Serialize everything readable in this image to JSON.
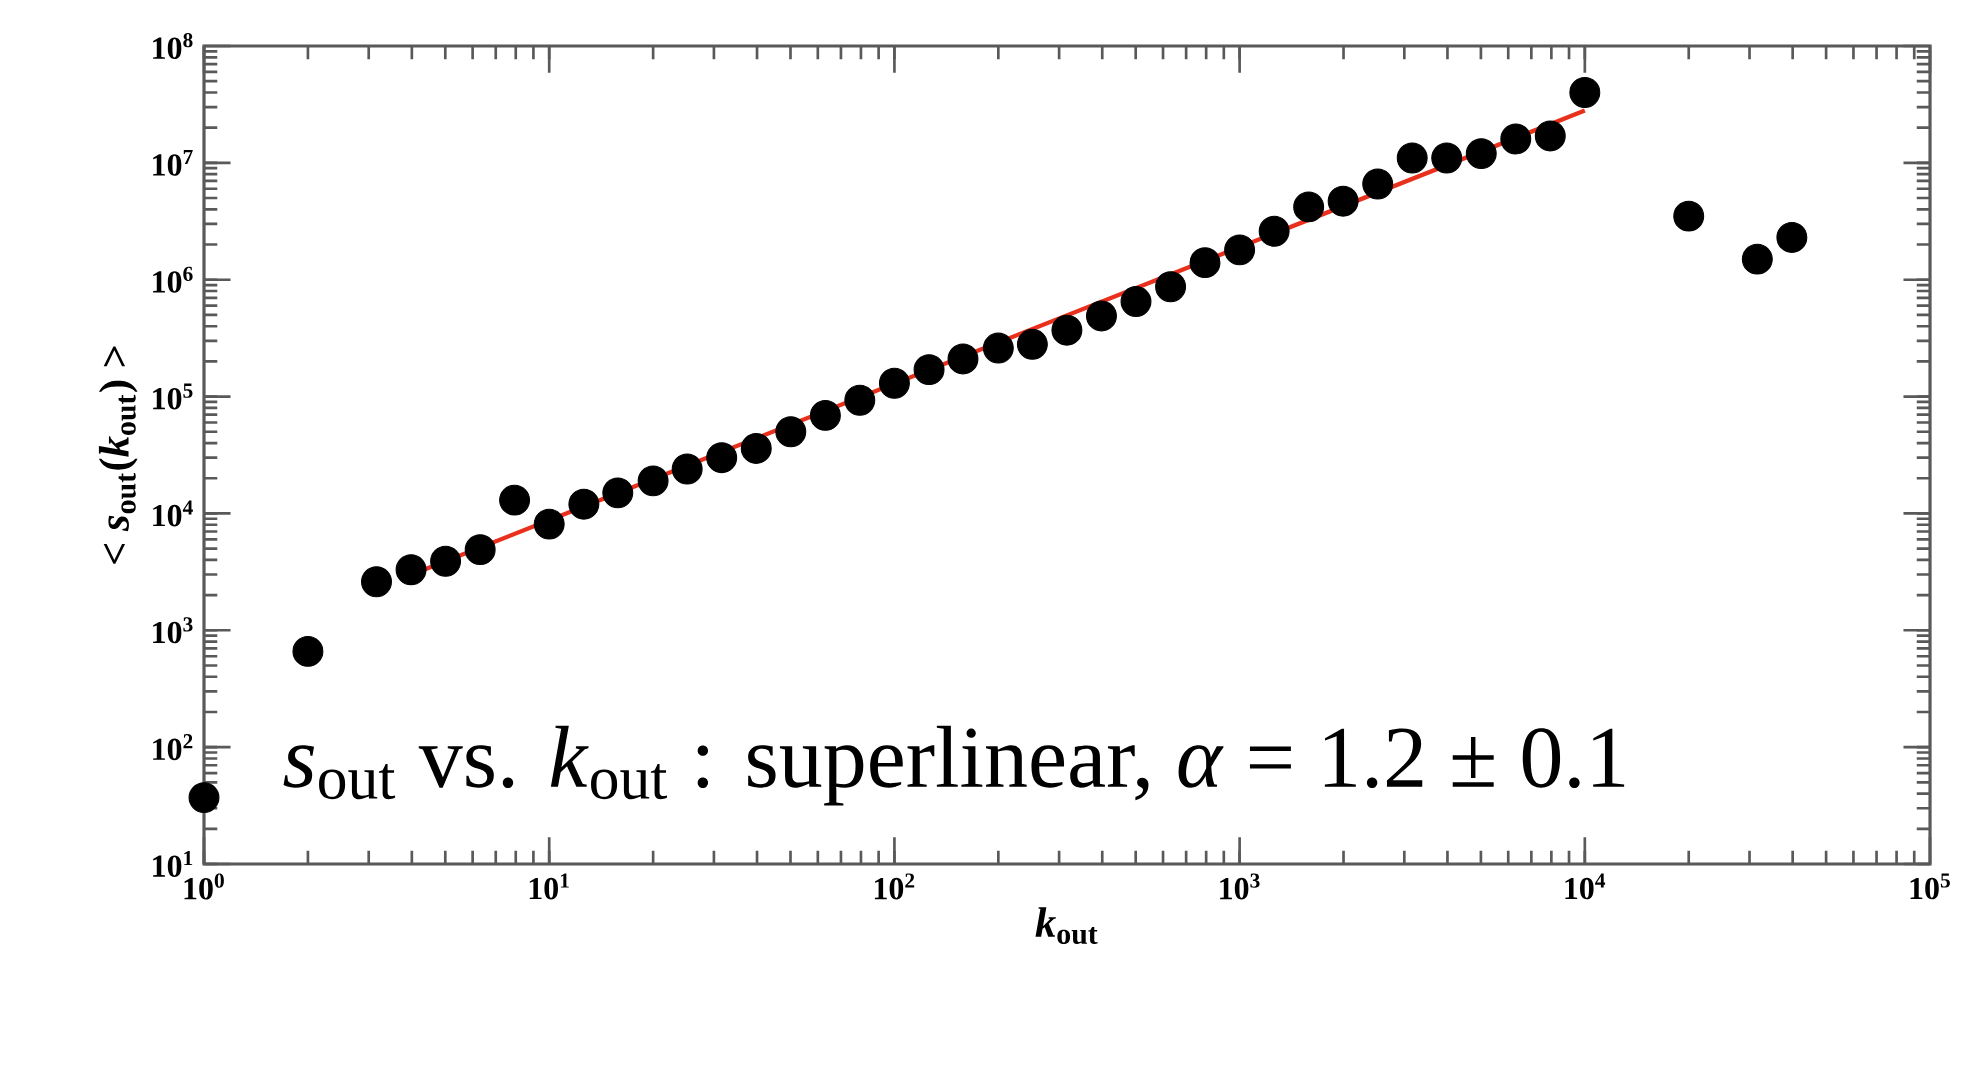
{
  "chart_data": {
    "type": "scatter",
    "xlabel": "*k*$_{out}$",
    "ylabel": "< *s*$_{out}$(*k*$_{out}$) >",
    "annotations": [
      "*s*$_{out}$ vs. *k*$_{out}$ :  superlinear, *α* = 1.2 ± 0.1"
    ],
    "log": "xy",
    "marker": "circle",
    "xlim": [
      1,
      100000
    ],
    "ylim": [
      10,
      100000000
    ],
    "xticks": [
      {
        "value": 1,
        "label": "10$^{0}$"
      },
      {
        "value": 10,
        "label": "10$^{1}$"
      },
      {
        "value": 100,
        "label": "10$^{2}$"
      },
      {
        "value": 1000,
        "label": "10$^{3}$"
      },
      {
        "value": 10000,
        "label": "10$^{4}$"
      },
      {
        "value": 100000,
        "label": "10$^{5}$"
      }
    ],
    "yticks": [
      {
        "value": 10,
        "label": "10$^{1}$"
      },
      {
        "value": 100,
        "label": "10$^{2}$"
      },
      {
        "value": 1000,
        "label": "10$^{3}$"
      },
      {
        "value": 10000,
        "label": "10$^{4}$"
      },
      {
        "value": 100000,
        "label": "10$^{5}$"
      },
      {
        "value": 1000000,
        "label": "10$^{6}$"
      },
      {
        "value": 10000000,
        "label": "10$^{7}$"
      },
      {
        "value": 100000000,
        "label": "10$^{8}$"
      }
    ],
    "series": [
      {
        "color": "#000000",
        "x": [
          1,
          2,
          3.16,
          3.98,
          5.01,
          6.31,
          7.94,
          10,
          12.6,
          15.8,
          20,
          25.1,
          31.6,
          39.8,
          50.1,
          63.1,
          79.4,
          100,
          126,
          158,
          200,
          251,
          316,
          398,
          501,
          631,
          794,
          1000,
          1259,
          1585,
          1995,
          2512,
          3162,
          3981,
          5012,
          6310,
          7943,
          10000,
          20000,
          31600,
          39800
        ],
        "values": [
          37,
          660,
          2600,
          3300,
          3900,
          4900,
          13000,
          8100,
          12000,
          15000,
          19000,
          24000,
          30000,
          36000,
          50000,
          69000,
          93000,
          130000,
          170000,
          210000,
          260000,
          280000,
          370000,
          490000,
          650000,
          870000,
          1400000,
          1800000,
          2600000,
          4200000,
          4700000,
          6600000,
          11000000,
          11000000,
          12000000,
          16000000,
          17000000,
          40000000,
          3500000,
          1500000,
          2300000
        ]
      },
      {
        "type": "line",
        "color": "#e8301c",
        "marker": "none",
        "x": [
          4,
          10000
        ],
        "values": [
          3000,
          28000000
        ]
      }
    ]
  }
}
